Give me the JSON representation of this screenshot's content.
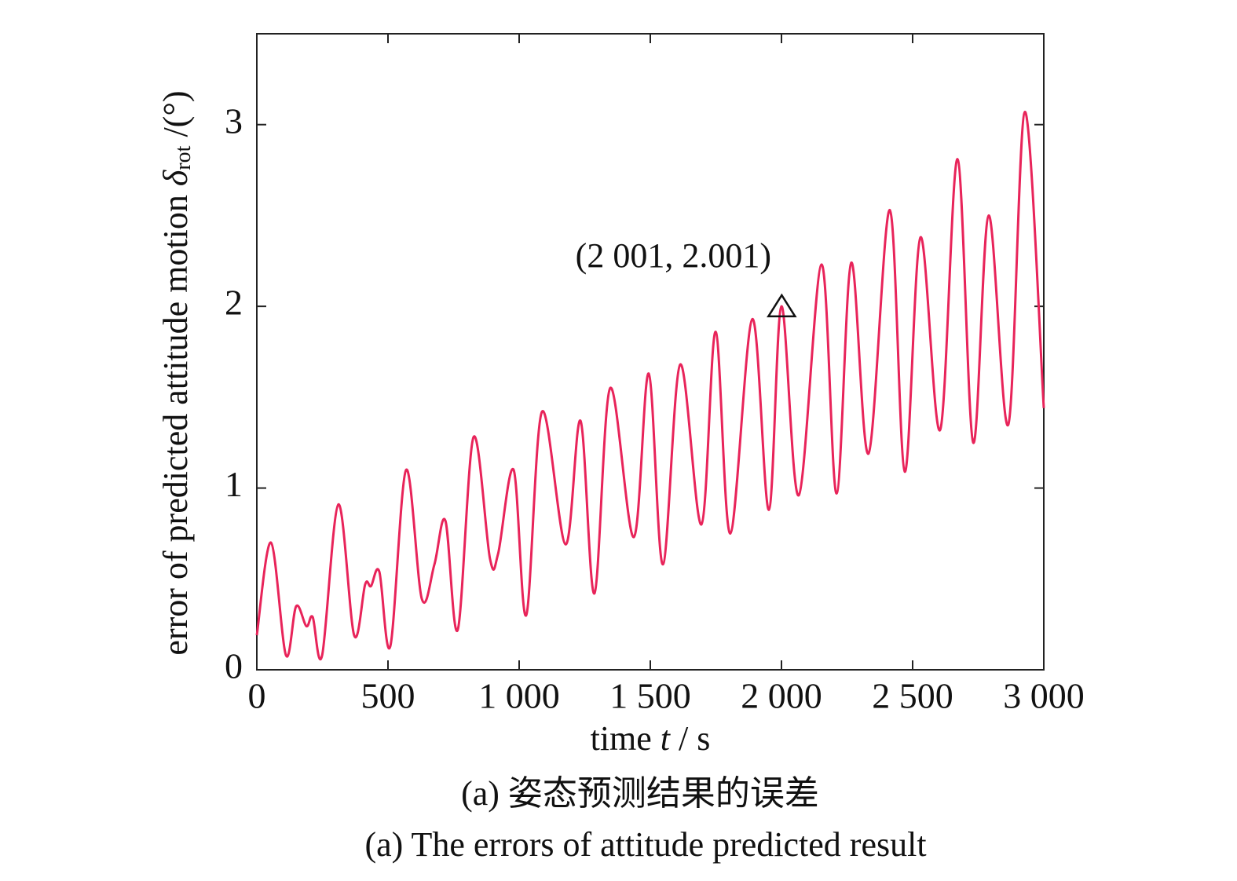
{
  "chart_data": {
    "type": "line",
    "x_label": {
      "pre": "time ",
      "var": "t",
      "post": " / s"
    },
    "y_label": {
      "pre": "error of predicted attitude motion ",
      "var": "δ",
      "sub": "rot",
      "post": " /(°)"
    },
    "captions": [
      "(a) 姿态预测结果的误差",
      "(a) The errors of attitude predicted result"
    ],
    "color": "#e8245a",
    "x": [
      0,
      54,
      111,
      150,
      189,
      213,
      249,
      311,
      371,
      413,
      435,
      467,
      509,
      569,
      629,
      677,
      719,
      766,
      826,
      889,
      920,
      979,
      1027,
      1087,
      1177,
      1234,
      1287,
      1347,
      1437,
      1494,
      1548,
      1614,
      1695,
      1749,
      1805,
      1889,
      1952,
      2000,
      2066,
      2153,
      2210,
      2266,
      2332,
      2413,
      2470,
      2530,
      2605,
      2671,
      2731,
      2790,
      2865,
      2928,
      3000
    ],
    "values": [
      0.19,
      0.7,
      0.08,
      0.35,
      0.24,
      0.29,
      0.08,
      0.91,
      0.19,
      0.47,
      0.46,
      0.54,
      0.13,
      1.1,
      0.39,
      0.58,
      0.82,
      0.22,
      1.28,
      0.61,
      0.64,
      1.1,
      0.3,
      1.42,
      0.69,
      1.37,
      0.42,
      1.55,
      0.73,
      1.63,
      0.58,
      1.68,
      0.8,
      1.86,
      0.75,
      1.93,
      0.88,
      2.0,
      0.96,
      2.23,
      0.97,
      2.24,
      1.19,
      2.53,
      1.09,
      2.38,
      1.32,
      2.81,
      1.25,
      2.5,
      1.35,
      3.07,
      1.44
    ],
    "xlim": [
      0,
      3000
    ],
    "xticks": [
      0,
      500,
      {
        "value": 1000,
        "label": "1 000"
      },
      {
        "value": 1500,
        "label": "1 500"
      },
      {
        "value": 2000,
        "label": "2 000"
      },
      {
        "value": 2500,
        "label": "2 500"
      },
      {
        "value": 3000,
        "label": "3 000"
      }
    ],
    "ylim": [
      0,
      3.5
    ],
    "yticks": [
      0,
      1,
      2,
      3
    ],
    "annotations": [
      {
        "text": "(2 001, 2.001)",
        "x": 2001,
        "y": 2.001
      }
    ]
  }
}
